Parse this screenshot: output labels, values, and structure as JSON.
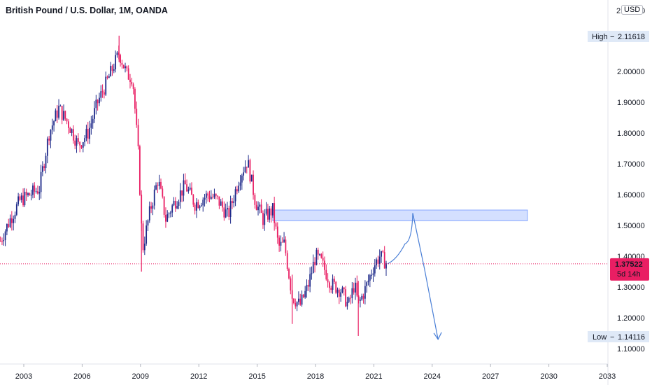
{
  "header": {
    "title": "British Pound / U.S. Dollar, 1M, OANDA",
    "currency": "USD"
  },
  "chart_data": {
    "type": "candlestick",
    "ylim": [
      1.05,
      2.2
    ],
    "xlim": [
      2001.5,
      2034.2
    ],
    "y_ticks": [
      "1.10000",
      "1.20000",
      "1.30000",
      "1.40000",
      "1.50000",
      "1.60000",
      "1.70000",
      "1.80000",
      "1.90000",
      "2.00000"
    ],
    "y_tick_values": [
      1.1,
      1.2,
      1.3,
      1.4,
      1.5,
      1.6,
      1.7,
      1.8,
      1.9,
      2.0
    ],
    "top_tick_partial": "2",
    "x_ticks": [
      "2003",
      "2006",
      "2009",
      "2012",
      "2015",
      "2018",
      "2021",
      "2024",
      "2027",
      "2030",
      "2033"
    ],
    "high": {
      "label": "High",
      "value": "2.11618"
    },
    "low": {
      "label": "Low",
      "value": "1.14116"
    },
    "current": {
      "value": "1.37522",
      "countdown": "5d 14h",
      "price": 1.37522
    },
    "zone": {
      "x_start": 2015.8,
      "x_end": 2028.9,
      "y_low": 1.515,
      "y_high": 1.55
    },
    "projection": [
      [
        2021.7,
        1.375
      ],
      [
        2022.2,
        1.39
      ],
      [
        2022.6,
        1.44
      ],
      [
        2023.0,
        1.54
      ],
      [
        2023.6,
        1.36
      ],
      [
        2024.3,
        1.13
      ]
    ],
    "price_path": [
      [
        2001.8,
        1.45
      ],
      [
        2002.3,
        1.52
      ],
      [
        2002.8,
        1.58
      ],
      [
        2003.3,
        1.6
      ],
      [
        2003.8,
        1.62
      ],
      [
        2004.3,
        1.8
      ],
      [
        2004.8,
        1.88
      ],
      [
        2005.3,
        1.83
      ],
      [
        2005.8,
        1.76
      ],
      [
        2006.3,
        1.8
      ],
      [
        2006.8,
        1.9
      ],
      [
        2007.3,
        1.97
      ],
      [
        2007.9,
        2.06
      ],
      [
        2008.3,
        1.99
      ],
      [
        2008.6,
        1.98
      ],
      [
        2008.9,
        1.72
      ],
      [
        2009.1,
        1.42
      ],
      [
        2009.5,
        1.55
      ],
      [
        2009.9,
        1.65
      ],
      [
        2010.3,
        1.52
      ],
      [
        2010.7,
        1.57
      ],
      [
        2011.3,
        1.63
      ],
      [
        2011.8,
        1.57
      ],
      [
        2012.5,
        1.6
      ],
      [
        2013.0,
        1.58
      ],
      [
        2013.5,
        1.53
      ],
      [
        2014.1,
        1.66
      ],
      [
        2014.5,
        1.71
      ],
      [
        2014.9,
        1.58
      ],
      [
        2015.3,
        1.52
      ],
      [
        2015.8,
        1.55
      ],
      [
        2016.1,
        1.43
      ],
      [
        2016.4,
        1.44
      ],
      [
        2016.8,
        1.27
      ],
      [
        2017.2,
        1.24
      ],
      [
        2017.6,
        1.3
      ],
      [
        2018.0,
        1.4
      ],
      [
        2018.3,
        1.38
      ],
      [
        2018.8,
        1.31
      ],
      [
        2019.3,
        1.29
      ],
      [
        2019.7,
        1.24
      ],
      [
        2020.0,
        1.31
      ],
      [
        2020.2,
        1.24
      ],
      [
        2020.6,
        1.3
      ],
      [
        2021.0,
        1.37
      ],
      [
        2021.3,
        1.4
      ],
      [
        2021.7,
        1.375
      ]
    ]
  }
}
